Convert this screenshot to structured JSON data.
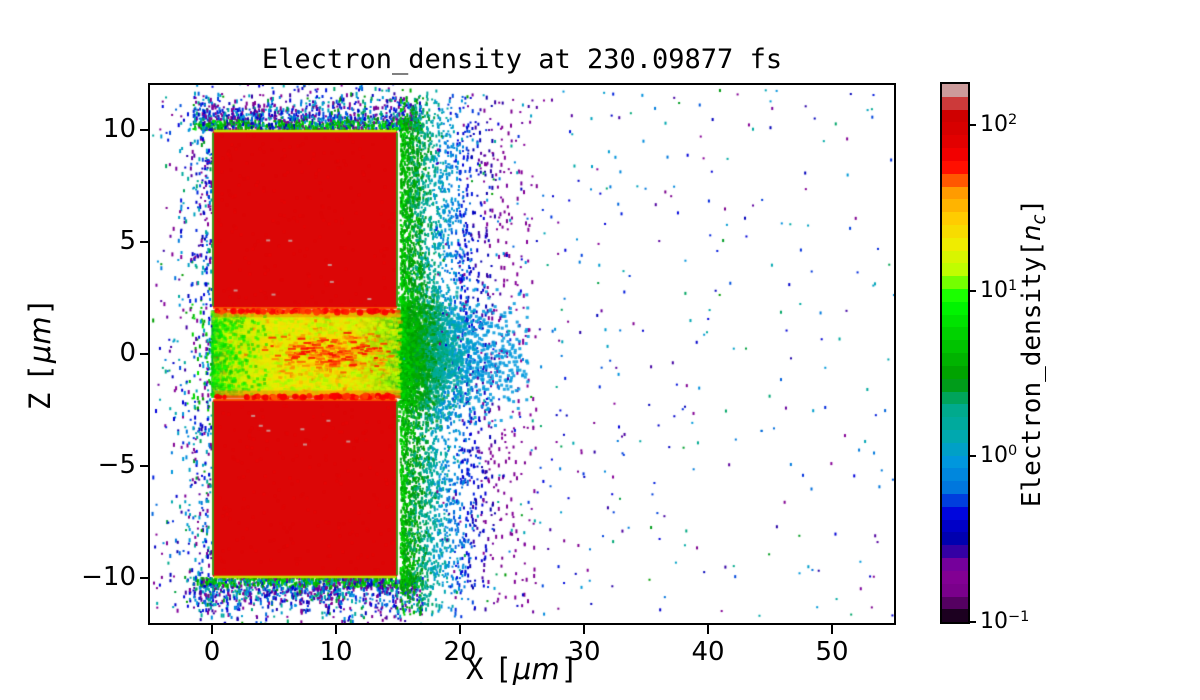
{
  "chart_data": {
    "type": "heatmap",
    "title": "Electron_density at 230.09877 fs",
    "time_fs": 230.09877,
    "xlabel": {
      "text": "X [μm]",
      "name": "X",
      "open": "[",
      "unit": "μm",
      "close": "]"
    },
    "ylabel": {
      "text": "Z [μm]",
      "name": "Z",
      "open": "[",
      "unit": "μm",
      "close": "]"
    },
    "xlim": [
      -5,
      55
    ],
    "ylim": [
      -12,
      12
    ],
    "xticks": [
      0,
      10,
      20,
      30,
      40,
      50
    ],
    "xtick_labels": [
      "0",
      "10",
      "20",
      "30",
      "40",
      "50"
    ],
    "yticks": [
      10,
      5,
      0,
      -5,
      -10
    ],
    "ytick_labels": [
      "10",
      "5",
      "0",
      "−5",
      "−10"
    ],
    "grid": false,
    "colorbar": {
      "label": {
        "text": "Electron_density[nc]",
        "prefix": "Electron_density[",
        "var": "n",
        "sub": "c",
        "close": "]"
      },
      "scale": "log",
      "vmin": 0.1,
      "vmax": 178,
      "ticks": [
        {
          "value": 100,
          "label_base": "10",
          "label_exp": "2"
        },
        {
          "value": 10,
          "label_base": "10",
          "label_exp": "1"
        },
        {
          "value": 1,
          "label_base": "10",
          "label_exp": "0"
        },
        {
          "value": 0.1,
          "label_base": "10",
          "label_exp": "−1"
        }
      ],
      "n_bands": 42,
      "colormap": "nipy_spectral",
      "colormap_points": {
        "pos": [
          0,
          0.05,
          0.1,
          0.15,
          0.2,
          0.25,
          0.3,
          0.35,
          0.4,
          0.45,
          0.5,
          0.55,
          0.6,
          0.65,
          0.7,
          0.75,
          0.8,
          0.85,
          0.9,
          0.95,
          1.0
        ],
        "r": [
          0,
          0.4667,
          0.5333,
          0,
          0,
          0,
          0,
          0,
          0,
          0,
          0,
          0,
          0,
          0.7333,
          0.9333,
          1.0,
          1.0,
          1.0,
          0.8667,
          0.8,
          0.8
        ],
        "g": [
          0,
          0,
          0,
          0,
          0,
          0.4667,
          0.6,
          0.6667,
          0.6667,
          0.6,
          0.7333,
          0.8667,
          1.0,
          1.0,
          0.9333,
          0.8,
          0.6,
          0,
          0,
          0,
          0.8
        ],
        "b": [
          0,
          0.5333,
          0.6,
          0.6667,
          0.8667,
          0.8667,
          0.8667,
          0.6667,
          0.5333,
          0,
          0,
          0,
          0,
          0,
          0,
          0,
          0,
          0,
          0,
          0,
          0.8
        ]
      }
    },
    "features": {
      "target_slabs": [
        {
          "x_um": [
            0,
            15
          ],
          "z_um": [
            2,
            10
          ],
          "density_nc": 100
        },
        {
          "x_um": [
            0,
            15
          ],
          "z_um": [
            -10,
            -2
          ],
          "density_nc": 100
        }
      ],
      "channel": {
        "x_um": [
          0,
          15
        ],
        "z_um": [
          -2,
          2
        ],
        "density_nc_range": [
          8,
          60
        ],
        "description": "laser channel: yellow core with orange-red filaments, green at entrance and exit"
      },
      "plume": {
        "x_um": [
          15,
          25
        ],
        "density_nc_range": [
          0.3,
          10
        ],
        "description": "green-to-teal-to-blue expanding plasma right of the targets"
      },
      "background_scatter": {
        "x_um": [
          -5,
          55
        ],
        "z_um": [
          -12,
          12
        ],
        "density_nc_range": [
          0.1,
          1.5
        ],
        "description": "sparse purple/blue/cyan macroparticle speckle thinning toward the right edge"
      }
    }
  }
}
